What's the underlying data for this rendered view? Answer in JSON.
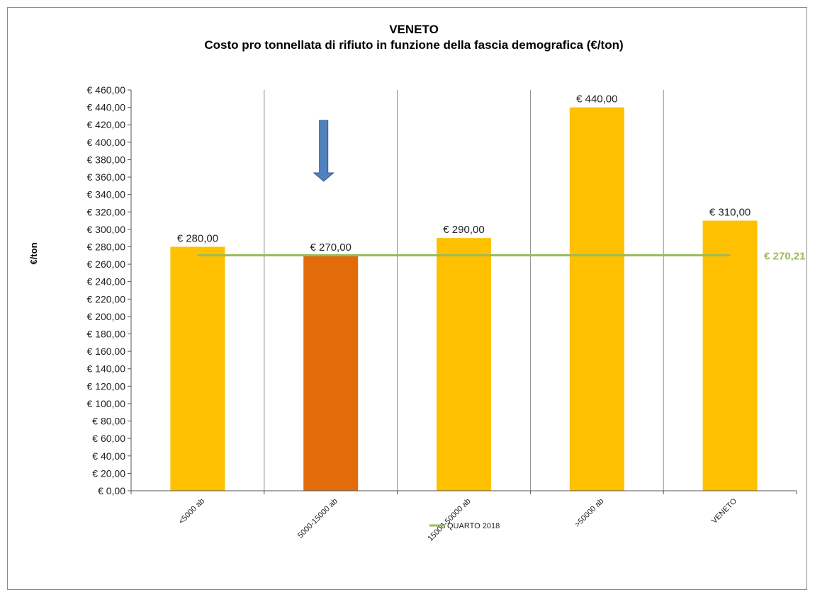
{
  "chart_data": {
    "type": "bar",
    "title": "VENETO",
    "subtitle": "Costo  pro tonnellata di rifiuto in funzione della fascia demografica (€/ton)",
    "ylabel": "€/ton",
    "xlabel": "",
    "ylim": [
      0,
      460
    ],
    "ytick_step": 20,
    "categories": [
      "<5000 ab",
      "5000-15000 ab",
      "15000-50000 ab",
      ">50000 ab",
      "VENETO"
    ],
    "values": [
      280,
      270,
      290,
      440,
      310
    ],
    "data_labels": [
      "€ 280,00",
      "€ 270,00",
      "€ 290,00",
      "€ 440,00",
      "€ 310,00"
    ],
    "ytick_labels": [
      "€ 0,00",
      "€ 20,00",
      "€ 40,00",
      "€ 60,00",
      "€ 80,00",
      "€ 100,00",
      "€ 120,00",
      "€ 140,00",
      "€ 160,00",
      "€ 180,00",
      "€ 200,00",
      "€ 220,00",
      "€ 240,00",
      "€ 260,00",
      "€ 280,00",
      "€ 300,00",
      "€ 320,00",
      "€ 340,00",
      "€ 360,00",
      "€ 380,00",
      "€ 400,00",
      "€ 420,00",
      "€ 440,00",
      "€ 460,00"
    ],
    "bar_colors": [
      "#FFC000",
      "#E36C0A",
      "#FFC000",
      "#FFC000",
      "#FFC000"
    ],
    "reference_line": {
      "name": "QUARTO 2018",
      "value": 270.21,
      "label": "€ 270,21",
      "color": "#9BBB59"
    },
    "highlight_arrow_category": "5000-15000 ab",
    "arrow_color": "#4F81BD",
    "grid": "vertical",
    "legend": "bottom-center"
  }
}
